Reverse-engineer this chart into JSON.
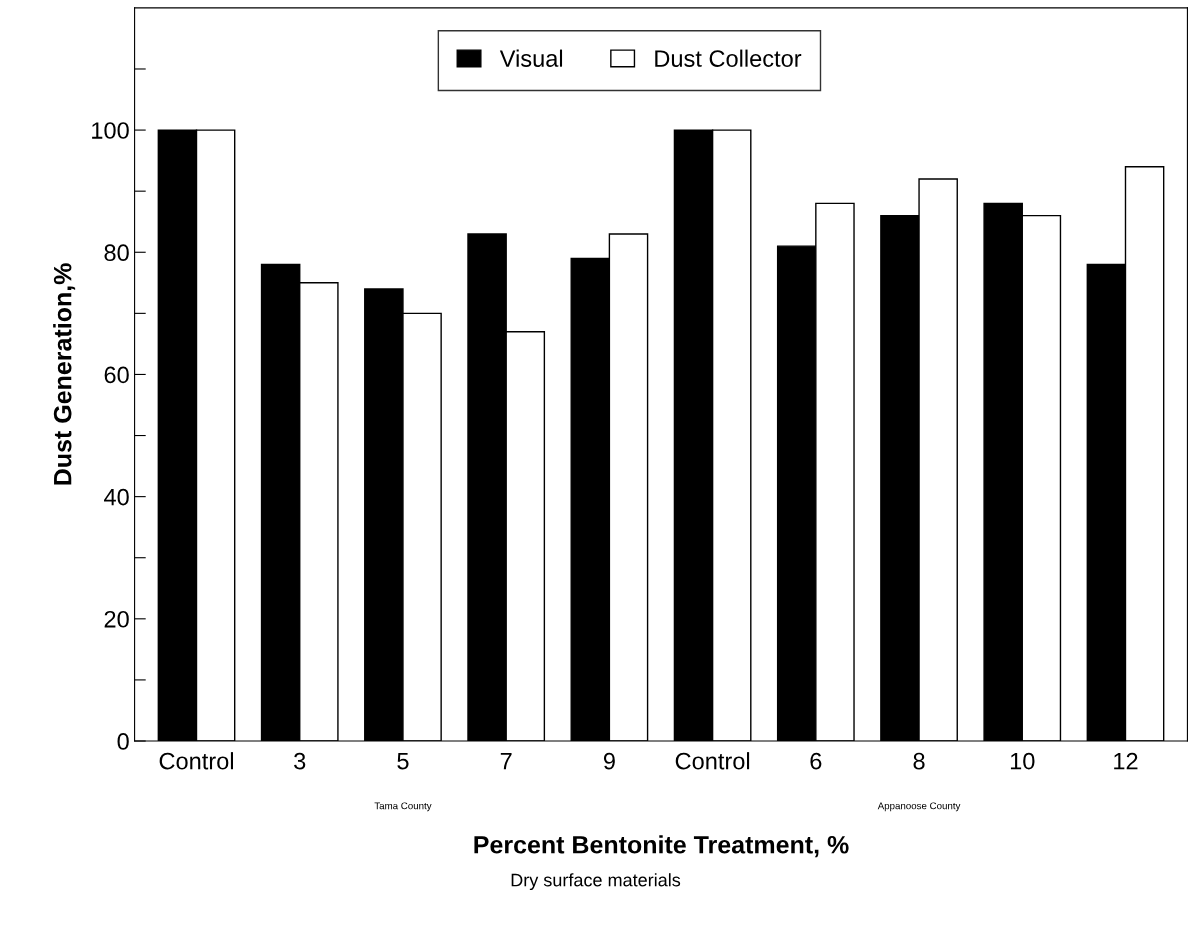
{
  "chart_data": {
    "type": "bar",
    "xlabel": "Percent Bentonite Treatment, %",
    "ylabel": "Dust Generation,%",
    "categories": [
      "Control",
      "3",
      "5",
      "7",
      "9",
      "Control",
      "6",
      "8",
      "10",
      "12"
    ],
    "series": [
      {
        "name": "Visual",
        "color": "#000000",
        "values": [
          100,
          78,
          74,
          83,
          79,
          100,
          81,
          86,
          88,
          78
        ]
      },
      {
        "name": "Dust Collector",
        "color": "#ffffff",
        "values": [
          100,
          75,
          70,
          67,
          83,
          100,
          88,
          92,
          86,
          94
        ]
      }
    ],
    "ylim": [
      0,
      120
    ],
    "yticks": [
      0,
      {
        "value": 10,
        "label": null
      },
      20,
      {
        "value": 30,
        "label": null
      },
      40,
      {
        "value": 50,
        "label": null
      },
      60,
      {
        "value": 70,
        "label": null
      },
      80,
      {
        "value": 90,
        "label": null
      },
      100,
      {
        "value": 110,
        "label": null
      }
    ],
    "legend": "top",
    "grid": false,
    "annotations": [
      "Tama County",
      "Appanoose County",
      "Dry surface materials"
    ]
  }
}
